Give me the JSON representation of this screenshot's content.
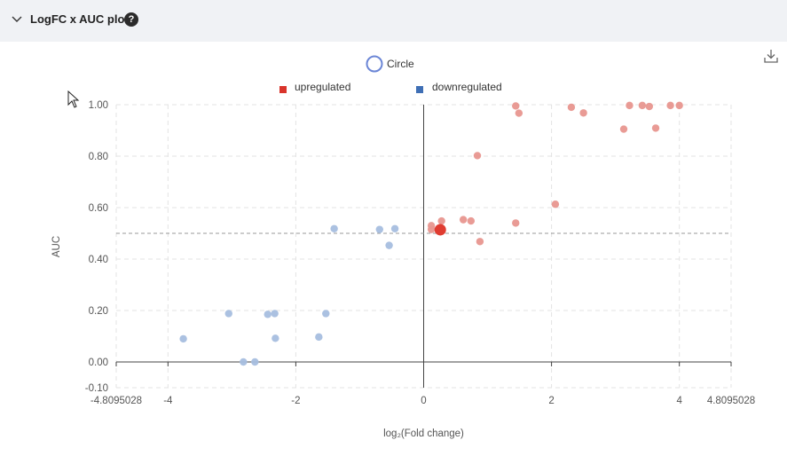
{
  "header": {
    "title": "LogFC x AUC plot",
    "help": "?"
  },
  "icons": {
    "collapse": "chevron-down-icon",
    "help": "question-circle-icon",
    "download": "download-icon",
    "cursor": "mouse-pointer-icon"
  },
  "legend": {
    "circle_label": "Circle",
    "up_label": "upregulated",
    "down_label": "downregulated"
  },
  "colors": {
    "up": "#d9342b",
    "up_point": "#e8968f",
    "down": "#3f6fb5",
    "down_point": "#a7bedf",
    "circle": "#6b86d6",
    "highlight": "#e03c31"
  },
  "chart_data": {
    "type": "scatter",
    "xlabel": "log₂(Fold change)",
    "ylabel": "AUC",
    "xlim": [
      -4.8095028,
      4.8095028
    ],
    "ylim": [
      -0.1,
      1.0
    ],
    "x_ticks": [
      "-4.8095028",
      "-4",
      "-2",
      "0",
      "2",
      "4",
      "4.8095028"
    ],
    "y_ticks": [
      "1.00",
      "0.80",
      "0.60",
      "0.40",
      "0.20",
      "0.00",
      "-0.10"
    ],
    "threshold_auc": 0.5,
    "grid": true,
    "legend_position": "top-center",
    "series": [
      {
        "name": "upregulated",
        "points": [
          [
            0.12,
            0.53
          ],
          [
            0.12,
            0.515
          ],
          [
            0.28,
            0.548
          ],
          [
            0.62,
            0.553
          ],
          [
            0.74,
            0.548
          ],
          [
            0.84,
            0.802
          ],
          [
            0.88,
            0.468
          ],
          [
            1.44,
            0.995
          ],
          [
            1.49,
            0.967
          ],
          [
            1.44,
            0.54
          ],
          [
            2.06,
            0.613
          ],
          [
            2.31,
            0.99
          ],
          [
            2.5,
            0.968
          ],
          [
            3.13,
            0.905
          ],
          [
            3.22,
            0.997
          ],
          [
            3.42,
            0.997
          ],
          [
            3.53,
            0.993
          ],
          [
            3.63,
            0.909
          ],
          [
            3.86,
            0.997
          ],
          [
            4.0,
            0.997
          ]
        ]
      },
      {
        "name": "downregulated",
        "points": [
          [
            -3.76,
            0.09
          ],
          [
            -3.05,
            0.188
          ],
          [
            -2.82,
            0.0
          ],
          [
            -2.64,
            0.0
          ],
          [
            -2.44,
            0.185
          ],
          [
            -2.33,
            0.188
          ],
          [
            -2.32,
            0.092
          ],
          [
            -1.64,
            0.097
          ],
          [
            -1.53,
            0.188
          ],
          [
            -1.4,
            0.518
          ],
          [
            -0.69,
            0.515
          ],
          [
            -0.54,
            0.453
          ],
          [
            -0.45,
            0.518
          ]
        ]
      }
    ],
    "highlight": {
      "name": "Circle",
      "point": [
        0.26,
        0.514
      ]
    }
  }
}
